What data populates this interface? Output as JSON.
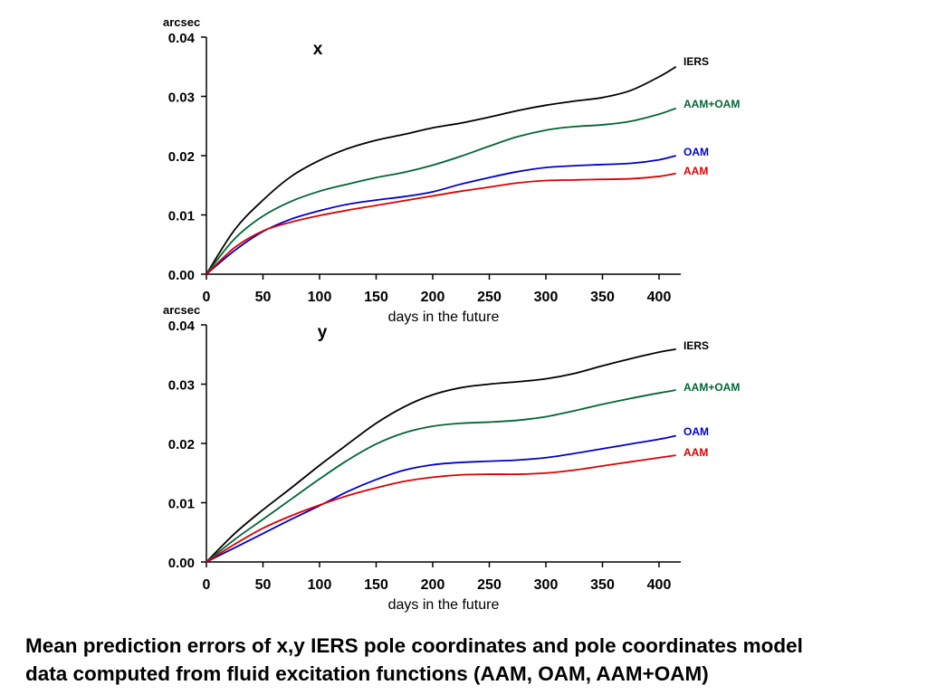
{
  "caption": {
    "line1": "Mean prediction errors of x,y IERS pole coordinates and pole coordinates model",
    "line2": "data computed from fluid excitation functions (AAM, OAM, AAM+OAM)"
  },
  "colors": {
    "IERS": "#000000",
    "AAM+OAM": "#006633",
    "OAM": "#0000cc",
    "AAM": "#dd0000"
  },
  "chart_data": [
    {
      "type": "line",
      "title": "x",
      "xlabel": "days in the future",
      "ylabel": "arcsec",
      "xlim": [
        0,
        420
      ],
      "ylim": [
        0,
        0.04
      ],
      "xticks": [
        0,
        50,
        100,
        150,
        200,
        250,
        300,
        350,
        400
      ],
      "yticks": [
        "0.00",
        "0.01",
        "0.02",
        "0.03",
        "0.04"
      ],
      "grid": false,
      "legend": "inline-right",
      "x": [
        0,
        25,
        50,
        75,
        100,
        125,
        150,
        175,
        200,
        225,
        250,
        275,
        300,
        325,
        350,
        375,
        400,
        415
      ],
      "series": [
        {
          "name": "IERS",
          "values": [
            0,
            0.0075,
            0.0125,
            0.0165,
            0.0192,
            0.0212,
            0.0226,
            0.0236,
            0.0247,
            0.0255,
            0.0265,
            0.0276,
            0.0285,
            0.0292,
            0.0298,
            0.031,
            0.0333,
            0.035
          ]
        },
        {
          "name": "AAM+OAM",
          "values": [
            0,
            0.006,
            0.0098,
            0.0123,
            0.014,
            0.0152,
            0.0163,
            0.0172,
            0.0184,
            0.0199,
            0.0216,
            0.0232,
            0.0243,
            0.0249,
            0.0252,
            0.0258,
            0.027,
            0.028
          ]
        },
        {
          "name": "OAM",
          "values": [
            0,
            0.004,
            0.0072,
            0.0093,
            0.0107,
            0.0118,
            0.0125,
            0.0131,
            0.0139,
            0.0152,
            0.0163,
            0.0173,
            0.018,
            0.0183,
            0.0185,
            0.0187,
            0.0193,
            0.02
          ]
        },
        {
          "name": "AAM",
          "values": [
            0,
            0.0045,
            0.0073,
            0.0088,
            0.0099,
            0.0108,
            0.0116,
            0.0124,
            0.0132,
            0.014,
            0.0147,
            0.0154,
            0.0158,
            0.0159,
            0.016,
            0.0161,
            0.0165,
            0.017
          ]
        }
      ]
    },
    {
      "type": "line",
      "title": "y",
      "xlabel": "days in the future",
      "ylabel": "arcsec",
      "xlim": [
        0,
        420
      ],
      "ylim": [
        0,
        0.04
      ],
      "xticks": [
        0,
        50,
        100,
        150,
        200,
        250,
        300,
        350,
        400
      ],
      "yticks": [
        "0.00",
        "0.01",
        "0.02",
        "0.03",
        "0.04"
      ],
      "grid": false,
      "legend": "inline-right",
      "x": [
        0,
        25,
        50,
        75,
        100,
        125,
        150,
        175,
        200,
        225,
        250,
        275,
        300,
        325,
        350,
        375,
        400,
        415
      ],
      "series": [
        {
          "name": "IERS",
          "values": [
            0,
            0.0048,
            0.0088,
            0.0125,
            0.0163,
            0.0199,
            0.0234,
            0.0262,
            0.0282,
            0.0294,
            0.03,
            0.0304,
            0.0309,
            0.0318,
            0.0331,
            0.0343,
            0.0354,
            0.0359
          ]
        },
        {
          "name": "AAM+OAM",
          "values": [
            0,
            0.0038,
            0.0072,
            0.0106,
            0.014,
            0.0172,
            0.0199,
            0.0218,
            0.0229,
            0.0234,
            0.0236,
            0.0239,
            0.0245,
            0.0255,
            0.0266,
            0.0276,
            0.0285,
            0.029
          ]
        },
        {
          "name": "OAM",
          "values": [
            0,
            0.0024,
            0.0048,
            0.0072,
            0.0095,
            0.0119,
            0.0139,
            0.0155,
            0.0164,
            0.0168,
            0.017,
            0.0172,
            0.0176,
            0.0183,
            0.0191,
            0.0199,
            0.0207,
            0.0213
          ]
        },
        {
          "name": "AAM",
          "values": [
            0,
            0.003,
            0.0057,
            0.0078,
            0.0096,
            0.0112,
            0.0125,
            0.0136,
            0.0143,
            0.0147,
            0.0148,
            0.0148,
            0.015,
            0.0155,
            0.0162,
            0.0169,
            0.0176,
            0.018
          ]
        }
      ]
    }
  ]
}
